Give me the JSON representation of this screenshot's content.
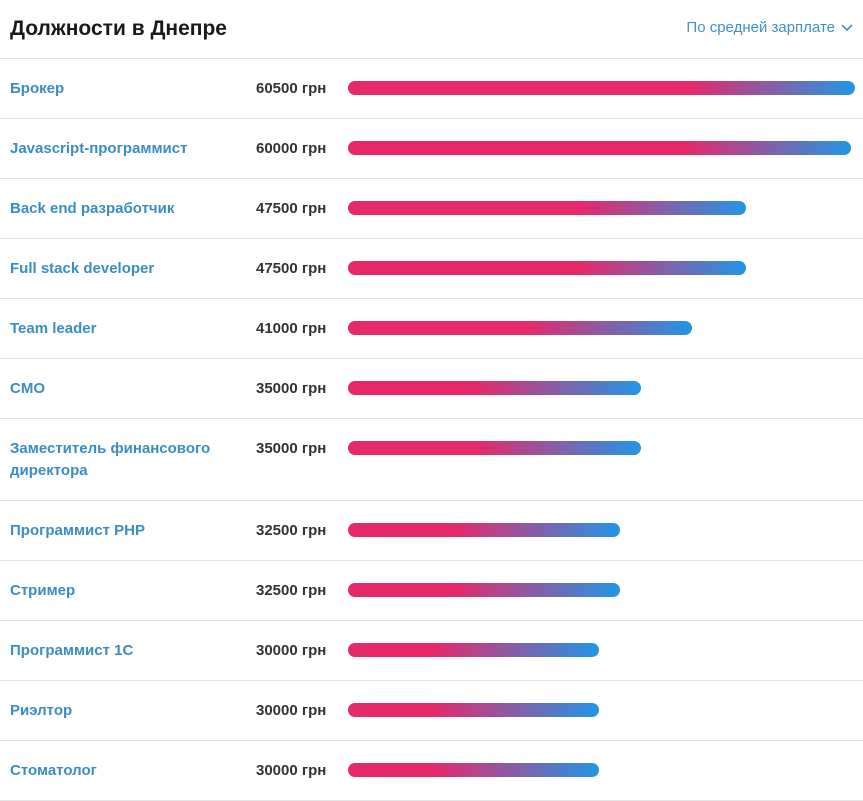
{
  "header": {
    "title": "Должности в Днепре",
    "sort_label": "По средней зарплате"
  },
  "colors": {
    "bar_start": "#e5296b",
    "bar_end": "#2196e6",
    "link": "#3a8dc4"
  },
  "chart_data": {
    "type": "bar",
    "orientation": "horizontal",
    "unit": "грн",
    "categories": [
      "Брокер",
      "Javascript-программист",
      "Back end разработчик",
      "Full stack developer",
      "Team leader",
      "CMO",
      "Заместитель финансового директора",
      "Программист PHP",
      "Стример",
      "Программист 1С",
      "Риэлтор",
      "Стоматолог"
    ],
    "values": [
      60500,
      60000,
      47500,
      47500,
      41000,
      35000,
      35000,
      32500,
      32500,
      30000,
      30000,
      30000
    ],
    "value_labels": [
      "60500 грн",
      "60000 грн",
      "47500 грн",
      "47500 грн",
      "41000 грн",
      "35000 грн",
      "35000 грн",
      "32500 грн",
      "32500 грн",
      "30000 грн",
      "30000 грн",
      "30000 грн"
    ]
  }
}
